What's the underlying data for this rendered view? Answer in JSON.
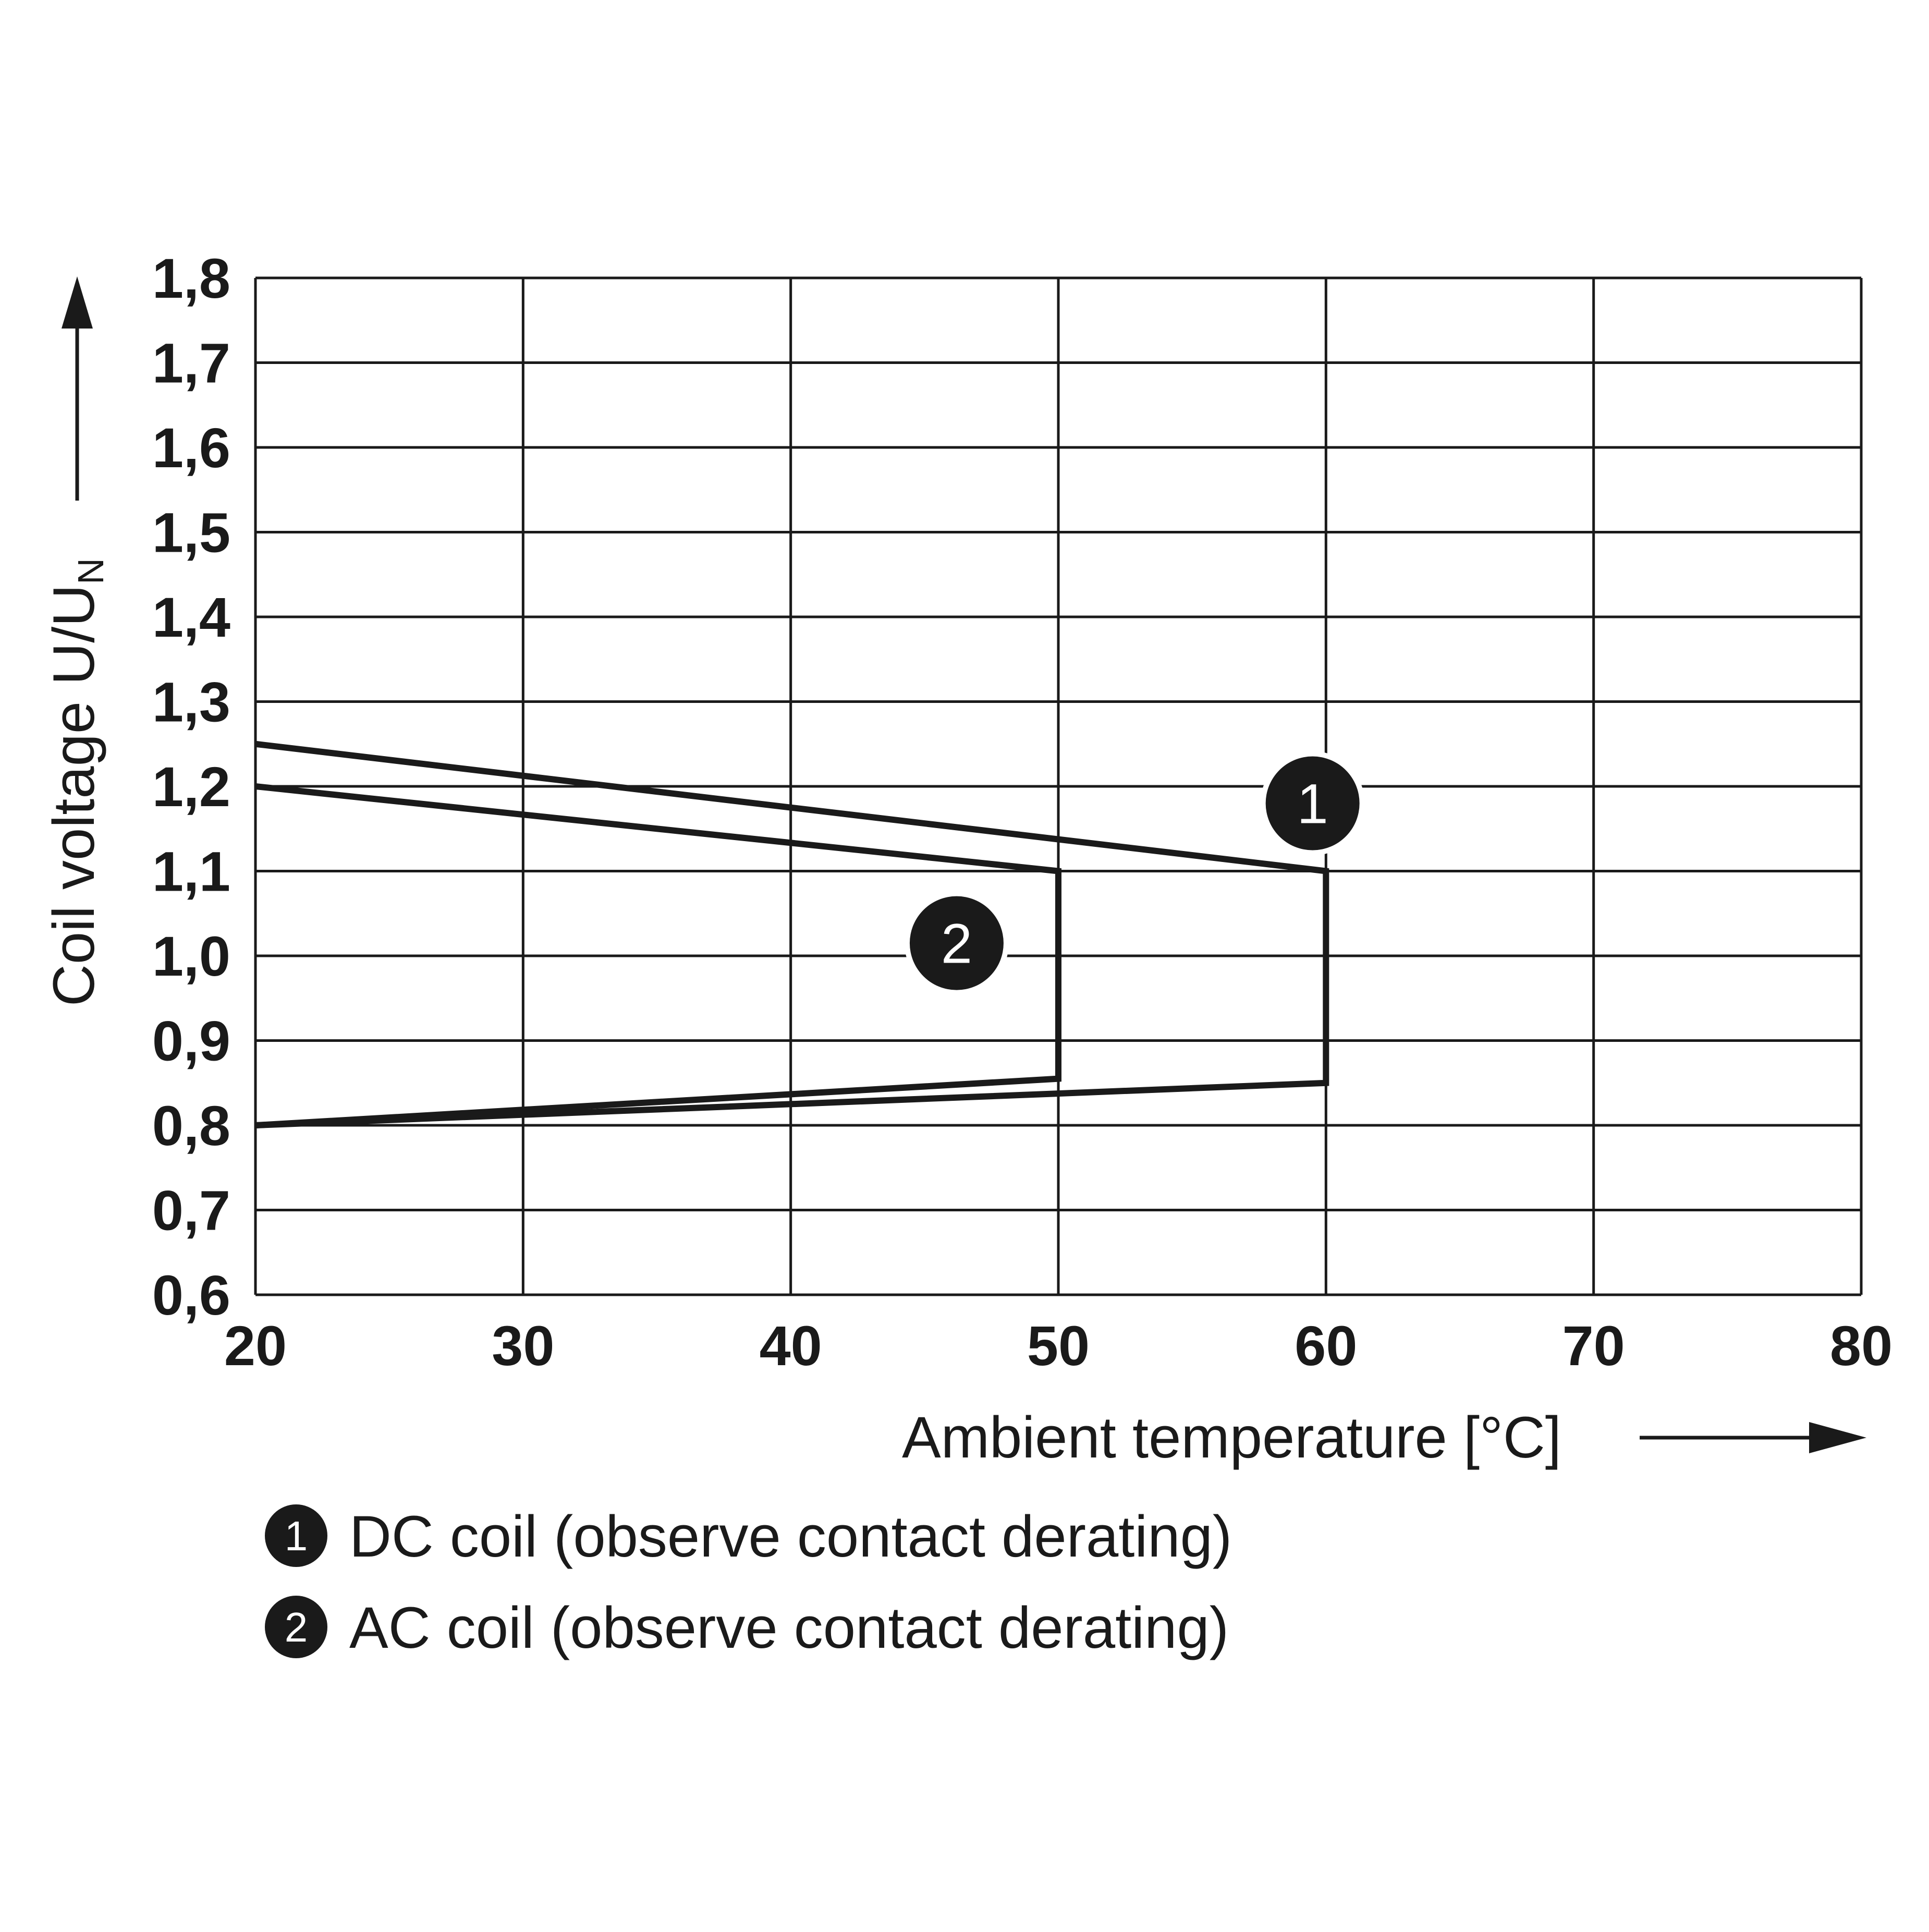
{
  "chart_data": {
    "type": "line",
    "title": "",
    "xlabel": "Ambient temperature [°C]",
    "ylabel_main": "Coil voltage U/U",
    "ylabel_sub": "N",
    "xlim": [
      20,
      80
    ],
    "ylim": [
      0.6,
      1.8
    ],
    "x_ticks": [
      20,
      30,
      40,
      50,
      60,
      70,
      80
    ],
    "x_tick_labels": [
      "20",
      "30",
      "40",
      "50",
      "60",
      "70",
      "80"
    ],
    "y_ticks": [
      0.6,
      0.7,
      0.8,
      0.9,
      1.0,
      1.1,
      1.2,
      1.3,
      1.4,
      1.5,
      1.6,
      1.7,
      1.8
    ],
    "y_tick_labels": [
      "0,6",
      "0,7",
      "0,8",
      "0,9",
      "1,0",
      "1,1",
      "1,2",
      "1,3",
      "1,4",
      "1,5",
      "1,6",
      "1,7",
      "1,8"
    ],
    "grid": true,
    "series": [
      {
        "name": "DC coil (observe contact derating)",
        "marker": "1",
        "points": [
          [
            20,
            1.25
          ],
          [
            60,
            1.1
          ],
          [
            60,
            0.85
          ],
          [
            20,
            0.8
          ]
        ],
        "label_at": [
          59.5,
          1.18
        ]
      },
      {
        "name": "AC coil (observe contact derating)",
        "marker": "2",
        "points": [
          [
            20,
            1.2
          ],
          [
            50,
            1.1
          ],
          [
            50,
            0.855
          ],
          [
            20,
            0.8
          ]
        ],
        "label_at": [
          46.2,
          1.015
        ]
      }
    ],
    "legend_position": "bottom-left",
    "legend": [
      {
        "marker": "1",
        "text": "DC coil (observe contact derating)"
      },
      {
        "marker": "2",
        "text": "AC coil (observe contact derating)"
      }
    ],
    "line_color": "#1a1a1a"
  }
}
